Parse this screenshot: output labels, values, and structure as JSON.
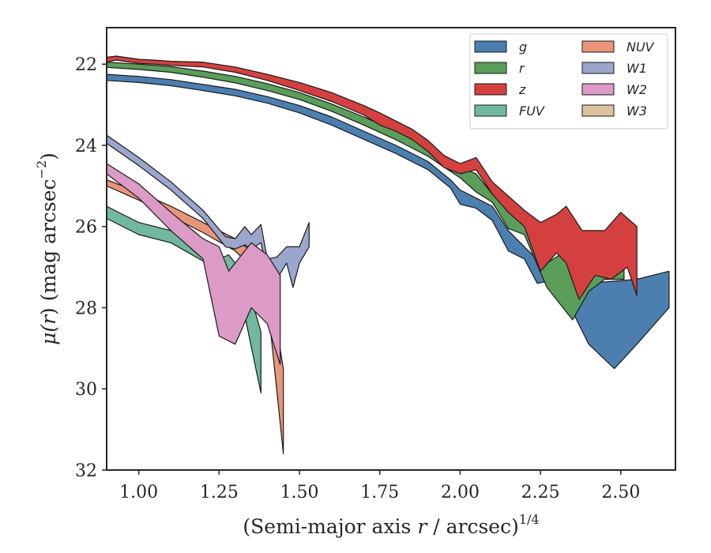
{
  "chart_data": {
    "type": "area",
    "xlabel_text": "(Semi-major axis ",
    "xlabel_var": "r",
    "xlabel_unit": " / arcsec)",
    "xlabel_sup": "1/4",
    "ylabel_mu": "μ(",
    "ylabel_var": "r",
    "ylabel_rest": ") (mag arcsec",
    "ylabel_sup": "−2",
    "ylabel_end": ")",
    "xlim": [
      0.9,
      2.67
    ],
    "ylim": [
      32.0,
      21.1
    ],
    "y_inverted": true,
    "xticks": [
      "1.00",
      "1.25",
      "1.50",
      "1.75",
      "2.00",
      "2.25",
      "2.50"
    ],
    "yticks": [
      "22",
      "24",
      "26",
      "28",
      "30",
      "32"
    ],
    "grid": false,
    "legend_position": "top-right",
    "legend_columns": 2,
    "series": [
      {
        "name": "g",
        "color": "#4c7fb0",
        "upper": [
          [
            0.9,
            22.25
          ],
          [
            1.0,
            22.3
          ],
          [
            1.1,
            22.38
          ],
          [
            1.2,
            22.5
          ],
          [
            1.3,
            22.62
          ],
          [
            1.4,
            22.8
          ],
          [
            1.5,
            23.02
          ],
          [
            1.6,
            23.3
          ],
          [
            1.7,
            23.65
          ],
          [
            1.8,
            24.0
          ],
          [
            1.9,
            24.4
          ],
          [
            1.97,
            24.85
          ],
          [
            2.0,
            25.1
          ],
          [
            2.05,
            25.3
          ],
          [
            2.1,
            25.5
          ],
          [
            2.15,
            26.1
          ],
          [
            2.2,
            26.5
          ],
          [
            2.25,
            26.9
          ],
          [
            2.3,
            27.0
          ],
          [
            2.4,
            27.4
          ],
          [
            2.55,
            27.3
          ],
          [
            2.65,
            27.1
          ]
        ],
        "lower": [
          [
            0.9,
            22.4
          ],
          [
            1.0,
            22.45
          ],
          [
            1.1,
            22.53
          ],
          [
            1.2,
            22.65
          ],
          [
            1.3,
            22.78
          ],
          [
            1.4,
            22.96
          ],
          [
            1.5,
            23.2
          ],
          [
            1.6,
            23.5
          ],
          [
            1.7,
            23.85
          ],
          [
            1.8,
            24.2
          ],
          [
            1.9,
            24.6
          ],
          [
            1.97,
            25.05
          ],
          [
            2.0,
            25.45
          ],
          [
            2.05,
            25.55
          ],
          [
            2.1,
            25.85
          ],
          [
            2.15,
            26.6
          ],
          [
            2.2,
            26.8
          ],
          [
            2.24,
            27.4
          ],
          [
            2.3,
            27.3
          ],
          [
            2.4,
            28.9
          ],
          [
            2.48,
            29.5
          ],
          [
            2.55,
            28.9
          ],
          [
            2.65,
            28.0
          ]
        ]
      },
      {
        "name": "r",
        "color": "#5a9e5a",
        "upper": [
          [
            0.9,
            21.95
          ],
          [
            1.0,
            22.0
          ],
          [
            1.1,
            22.06
          ],
          [
            1.2,
            22.17
          ],
          [
            1.3,
            22.3
          ],
          [
            1.4,
            22.48
          ],
          [
            1.5,
            22.7
          ],
          [
            1.6,
            22.98
          ],
          [
            1.7,
            23.3
          ],
          [
            1.8,
            23.65
          ],
          [
            1.9,
            24.05
          ],
          [
            2.0,
            24.55
          ],
          [
            2.05,
            24.7
          ],
          [
            2.1,
            25.2
          ],
          [
            2.15,
            25.6
          ],
          [
            2.2,
            25.9
          ],
          [
            2.27,
            26.9
          ],
          [
            2.33,
            26.6
          ],
          [
            2.4,
            26.7
          ],
          [
            2.45,
            26.6
          ],
          [
            2.51,
            26.8
          ]
        ],
        "lower": [
          [
            0.9,
            22.08
          ],
          [
            1.0,
            22.13
          ],
          [
            1.1,
            22.2
          ],
          [
            1.2,
            22.32
          ],
          [
            1.3,
            22.46
          ],
          [
            1.4,
            22.65
          ],
          [
            1.5,
            22.87
          ],
          [
            1.6,
            23.16
          ],
          [
            1.7,
            23.5
          ],
          [
            1.8,
            23.86
          ],
          [
            1.9,
            24.27
          ],
          [
            2.0,
            24.8
          ],
          [
            2.05,
            25.15
          ],
          [
            2.1,
            25.4
          ],
          [
            2.15,
            26.05
          ],
          [
            2.2,
            26.2
          ],
          [
            2.27,
            27.5
          ],
          [
            2.35,
            28.3
          ],
          [
            2.4,
            27.6
          ],
          [
            2.45,
            27.3
          ],
          [
            2.51,
            27.3
          ]
        ]
      },
      {
        "name": "z",
        "color": "#d44040",
        "upper": [
          [
            0.9,
            21.83
          ],
          [
            0.93,
            21.8
          ],
          [
            1.0,
            21.88
          ],
          [
            1.05,
            21.9
          ],
          [
            1.1,
            21.93
          ],
          [
            1.2,
            21.95
          ],
          [
            1.3,
            22.07
          ],
          [
            1.4,
            22.25
          ],
          [
            1.5,
            22.45
          ],
          [
            1.6,
            22.7
          ],
          [
            1.7,
            23.02
          ],
          [
            1.75,
            23.2
          ],
          [
            1.8,
            23.4
          ],
          [
            1.85,
            23.6
          ],
          [
            1.9,
            23.88
          ],
          [
            1.95,
            24.25
          ],
          [
            2.0,
            24.45
          ],
          [
            2.05,
            24.3
          ],
          [
            2.1,
            24.9
          ],
          [
            2.15,
            25.25
          ],
          [
            2.2,
            25.6
          ],
          [
            2.25,
            25.9
          ],
          [
            2.3,
            25.7
          ],
          [
            2.33,
            25.5
          ],
          [
            2.38,
            26.1
          ],
          [
            2.45,
            26.1
          ],
          [
            2.5,
            25.65
          ],
          [
            2.55,
            26.0
          ]
        ],
        "lower": [
          [
            0.9,
            21.95
          ],
          [
            0.93,
            21.9
          ],
          [
            1.0,
            21.98
          ],
          [
            1.05,
            22.0
          ],
          [
            1.1,
            22.03
          ],
          [
            1.2,
            22.07
          ],
          [
            1.3,
            22.2
          ],
          [
            1.4,
            22.4
          ],
          [
            1.5,
            22.65
          ],
          [
            1.6,
            22.92
          ],
          [
            1.7,
            23.25
          ],
          [
            1.75,
            23.5
          ],
          [
            1.8,
            23.65
          ],
          [
            1.85,
            23.85
          ],
          [
            1.9,
            24.15
          ],
          [
            1.95,
            24.55
          ],
          [
            2.0,
            24.7
          ],
          [
            2.05,
            24.6
          ],
          [
            2.1,
            25.2
          ],
          [
            2.15,
            25.65
          ],
          [
            2.2,
            26.0
          ],
          [
            2.25,
            27.1
          ],
          [
            2.3,
            26.65
          ],
          [
            2.33,
            26.9
          ],
          [
            2.37,
            27.8
          ],
          [
            2.42,
            27.2
          ],
          [
            2.47,
            27.3
          ],
          [
            2.52,
            27.0
          ],
          [
            2.55,
            27.7
          ]
        ]
      },
      {
        "name": "FUV",
        "color": "#72b89e",
        "upper": [
          [
            0.9,
            25.5
          ],
          [
            1.0,
            25.9
          ],
          [
            1.1,
            26.1
          ],
          [
            1.2,
            26.4
          ],
          [
            1.25,
            26.8
          ],
          [
            1.28,
            26.7
          ],
          [
            1.33,
            27.2
          ],
          [
            1.38,
            28.6
          ]
        ],
        "lower": [
          [
            0.9,
            25.8
          ],
          [
            1.0,
            26.2
          ],
          [
            1.1,
            26.4
          ],
          [
            1.2,
            26.85
          ],
          [
            1.25,
            27.2
          ],
          [
            1.28,
            27.45
          ],
          [
            1.33,
            28.2
          ],
          [
            1.38,
            30.1
          ]
        ]
      },
      {
        "name": "NUV",
        "color": "#e8957a",
        "upper": [
          [
            0.9,
            24.85
          ],
          [
            1.0,
            25.15
          ],
          [
            1.1,
            25.5
          ],
          [
            1.2,
            25.9
          ],
          [
            1.3,
            26.3
          ],
          [
            1.35,
            26.6
          ],
          [
            1.4,
            27.1
          ],
          [
            1.45,
            29.5
          ]
        ],
        "lower": [
          [
            0.9,
            25.0
          ],
          [
            1.0,
            25.35
          ],
          [
            1.1,
            25.75
          ],
          [
            1.2,
            26.15
          ],
          [
            1.3,
            26.6
          ],
          [
            1.35,
            27.0
          ],
          [
            1.4,
            27.8
          ],
          [
            1.45,
            31.6
          ]
        ]
      },
      {
        "name": "W1",
        "color": "#9aa6cc",
        "upper": [
          [
            0.9,
            23.75
          ],
          [
            1.0,
            24.3
          ],
          [
            1.1,
            24.9
          ],
          [
            1.2,
            25.6
          ],
          [
            1.27,
            26.25
          ],
          [
            1.3,
            26.3
          ],
          [
            1.33,
            26.0
          ],
          [
            1.35,
            26.2
          ],
          [
            1.38,
            25.95
          ],
          [
            1.4,
            26.8
          ],
          [
            1.43,
            26.75
          ],
          [
            1.46,
            26.5
          ],
          [
            1.5,
            26.5
          ],
          [
            1.53,
            25.9
          ]
        ],
        "lower": [
          [
            0.9,
            23.95
          ],
          [
            1.0,
            24.5
          ],
          [
            1.1,
            25.1
          ],
          [
            1.2,
            25.8
          ],
          [
            1.27,
            26.5
          ],
          [
            1.3,
            26.55
          ],
          [
            1.33,
            26.45
          ],
          [
            1.35,
            26.55
          ],
          [
            1.38,
            26.4
          ],
          [
            1.4,
            27.1
          ],
          [
            1.43,
            27.3
          ],
          [
            1.46,
            26.9
          ],
          [
            1.48,
            27.5
          ],
          [
            1.5,
            26.9
          ],
          [
            1.53,
            26.5
          ]
        ]
      },
      {
        "name": "W2",
        "color": "#dc9ac6",
        "upper": [
          [
            0.9,
            24.45
          ],
          [
            1.0,
            24.95
          ],
          [
            1.1,
            25.65
          ],
          [
            1.2,
            26.3
          ],
          [
            1.25,
            26.5
          ],
          [
            1.28,
            27.1
          ],
          [
            1.31,
            26.8
          ],
          [
            1.35,
            26.4
          ],
          [
            1.4,
            26.7
          ],
          [
            1.44,
            27.2
          ]
        ],
        "lower": [
          [
            0.9,
            24.7
          ],
          [
            1.0,
            25.3
          ],
          [
            1.1,
            26.1
          ],
          [
            1.2,
            26.8
          ],
          [
            1.25,
            28.7
          ],
          [
            1.3,
            28.9
          ],
          [
            1.35,
            28.0
          ],
          [
            1.4,
            28.4
          ],
          [
            1.44,
            29.4
          ]
        ]
      },
      {
        "name": "W3",
        "color": "#dcc39e",
        "upper": [],
        "lower": []
      }
    ]
  }
}
